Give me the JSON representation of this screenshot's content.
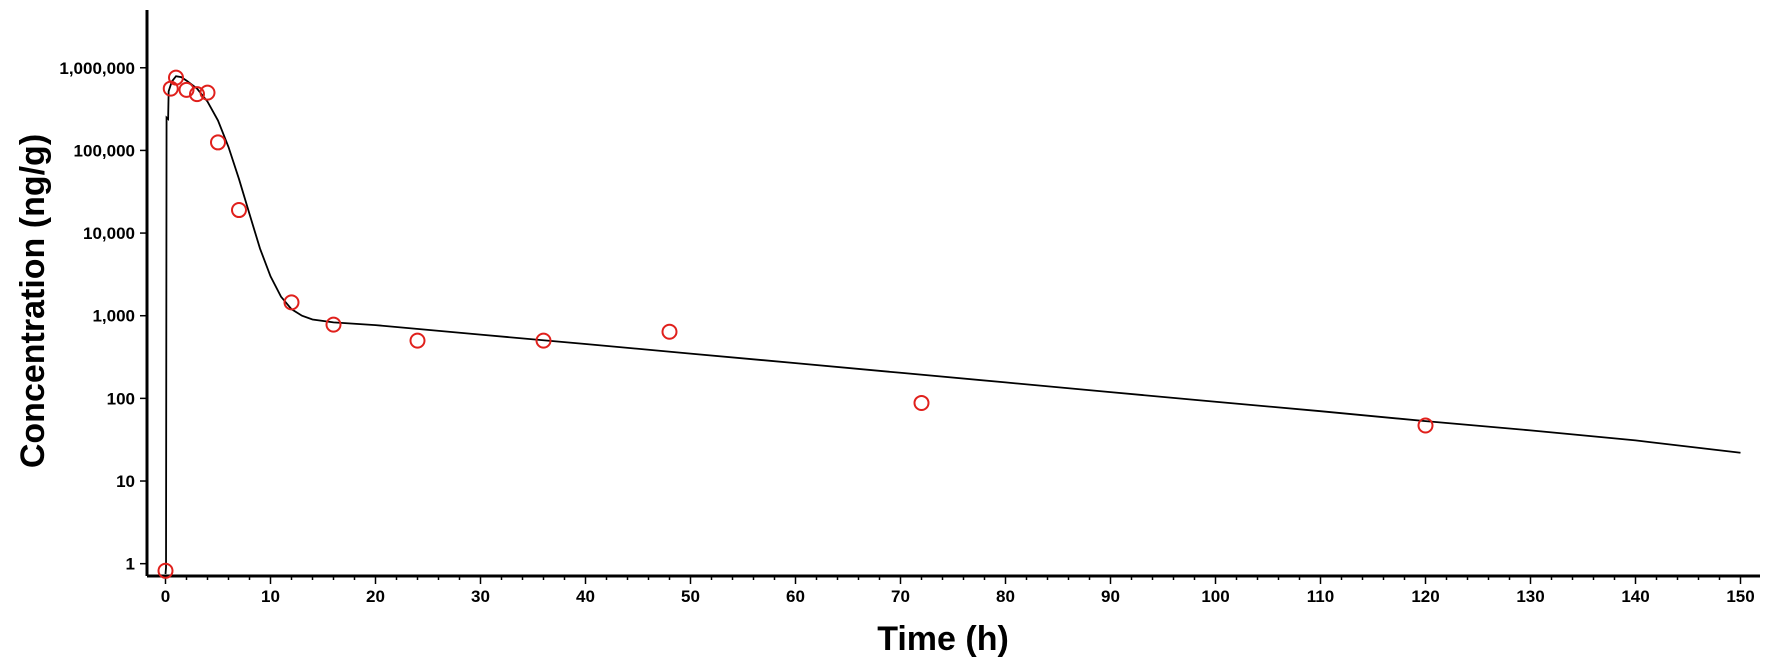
{
  "chart_data": {
    "type": "scatter",
    "title": "",
    "xlabel": "Time (h)",
    "ylabel": "Concentration (ng/g)",
    "xlim": [
      -1,
      151
    ],
    "ylim": [
      0.75,
      5000000
    ],
    "y_scale": "log",
    "grid": false,
    "legend": "none",
    "x_ticks": [
      0,
      10,
      20,
      30,
      40,
      50,
      60,
      70,
      80,
      90,
      100,
      110,
      120,
      130,
      140,
      150
    ],
    "x_tick_labels": [
      "0",
      "10",
      "20",
      "30",
      "40",
      "50",
      "60",
      "70",
      "80",
      "90",
      "100",
      "110",
      "120",
      "130",
      "140",
      "150"
    ],
    "y_ticks": [
      1,
      10,
      100,
      1000,
      10000,
      100000,
      1000000
    ],
    "y_tick_labels": [
      "1",
      "10",
      "100",
      "1,000",
      "10,000",
      "100,000",
      "1,000,000"
    ],
    "series": [
      {
        "kind": "observed",
        "color": "#e0201c",
        "marker": "circle",
        "points": [
          {
            "x": 0,
            "y": 0.82
          },
          {
            "x": 0.5,
            "y": 560000
          },
          {
            "x": 1,
            "y": 760000
          },
          {
            "x": 2,
            "y": 540000
          },
          {
            "x": 3,
            "y": 480000
          },
          {
            "x": 4,
            "y": 500000
          },
          {
            "x": 5,
            "y": 125000
          },
          {
            "x": 7,
            "y": 19000
          },
          {
            "x": 12,
            "y": 1450
          },
          {
            "x": 16,
            "y": 780
          },
          {
            "x": 24,
            "y": 500
          },
          {
            "x": 36,
            "y": 500
          },
          {
            "x": 48,
            "y": 640
          },
          {
            "x": 72,
            "y": 88
          },
          {
            "x": 120,
            "y": 47
          }
        ]
      },
      {
        "kind": "fitted",
        "color": "#000000",
        "line": true,
        "points": [
          {
            "x": 0,
            "y": 0.75
          },
          {
            "x": 0.05,
            "y": 0.9
          },
          {
            "x": 0.1,
            "y": 250000
          },
          {
            "x": 0.25,
            "y": 240000
          },
          {
            "x": 0.3,
            "y": 520000
          },
          {
            "x": 0.6,
            "y": 680000
          },
          {
            "x": 1,
            "y": 790000
          },
          {
            "x": 1.5,
            "y": 770000
          },
          {
            "x": 2,
            "y": 700000
          },
          {
            "x": 3,
            "y": 560000
          },
          {
            "x": 4,
            "y": 390000
          },
          {
            "x": 5,
            "y": 230000
          },
          {
            "x": 6,
            "y": 110000
          },
          {
            "x": 7,
            "y": 45000
          },
          {
            "x": 8,
            "y": 17000
          },
          {
            "x": 9,
            "y": 6500
          },
          {
            "x": 10,
            "y": 3000
          },
          {
            "x": 11,
            "y": 1700
          },
          {
            "x": 12,
            "y": 1200
          },
          {
            "x": 13,
            "y": 1000
          },
          {
            "x": 14,
            "y": 900
          },
          {
            "x": 16,
            "y": 830
          },
          {
            "x": 20,
            "y": 770
          },
          {
            "x": 30,
            "y": 590
          },
          {
            "x": 40,
            "y": 455
          },
          {
            "x": 50,
            "y": 348
          },
          {
            "x": 60,
            "y": 267
          },
          {
            "x": 70,
            "y": 204
          },
          {
            "x": 80,
            "y": 156
          },
          {
            "x": 90,
            "y": 119
          },
          {
            "x": 100,
            "y": 91
          },
          {
            "x": 110,
            "y": 70
          },
          {
            "x": 120,
            "y": 53
          },
          {
            "x": 130,
            "y": 41
          },
          {
            "x": 140,
            "y": 31
          },
          {
            "x": 150,
            "y": 22
          }
        ]
      }
    ]
  }
}
